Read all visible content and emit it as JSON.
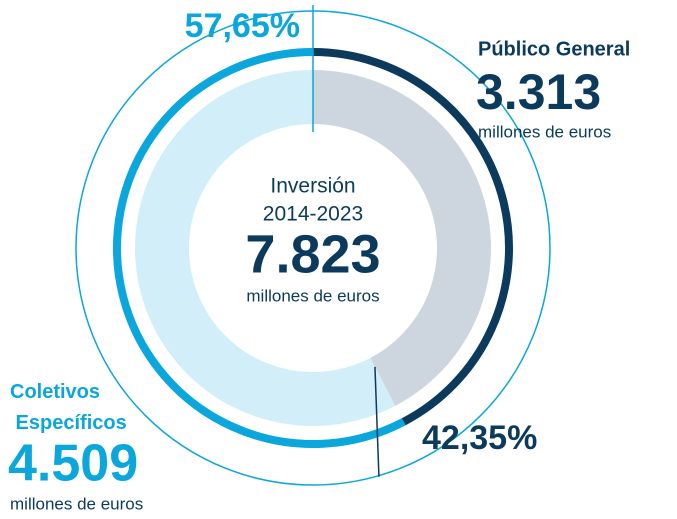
{
  "chart_data": {
    "type": "donut",
    "center": {
      "title": "Inversión",
      "period": "2014-2023",
      "total": 7823,
      "total_label": "7.823"
    },
    "unit": "millones de euros",
    "categories": [
      "Público General",
      "Coletivos Específicos"
    ],
    "values": [
      42.35,
      57.65
    ],
    "value_labels": [
      "42,35%",
      "57,65%"
    ],
    "amounts": [
      3313,
      4509
    ],
    "amount_labels": [
      "3.313",
      "4.509"
    ],
    "colors": [
      "#0b3a5c",
      "#0aa6dc"
    ],
    "fills": [
      "#cdd6de",
      "#d2eef9"
    ]
  }
}
